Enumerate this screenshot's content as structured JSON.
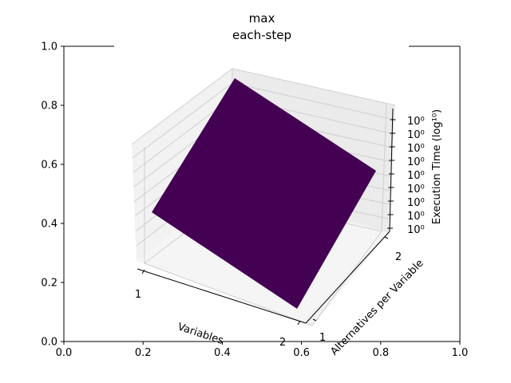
{
  "chart_data": {
    "type": "surface3d",
    "title": "max",
    "subtitle": "each-step",
    "x_label": "Variables",
    "y_label": "Alternatives per Variable",
    "z_label": "Execution Time (log¹⁰)",
    "x_ticks": [
      "1",
      "2"
    ],
    "y_ticks": [
      "1",
      "2"
    ],
    "z_ticks": [
      "10⁰",
      "10⁰",
      "10⁰",
      "10⁰",
      "10⁰",
      "10⁰",
      "10⁰",
      "10⁰",
      "10⁰"
    ],
    "background_axis": {
      "x_ticks": [
        "0.0",
        "0.2",
        "0.4",
        "0.6",
        "0.8",
        "1.0"
      ],
      "y_ticks": [
        "0.0",
        "0.2",
        "0.4",
        "0.6",
        "0.8",
        "1.0"
      ],
      "xlim": [
        0,
        1
      ],
      "ylim": [
        0,
        1
      ]
    },
    "surface": {
      "x": [
        1,
        2
      ],
      "y": [
        1,
        2
      ],
      "z": [
        [
          1,
          1
        ],
        [
          1,
          1
        ]
      ],
      "color": "#440154"
    },
    "grid": true
  }
}
